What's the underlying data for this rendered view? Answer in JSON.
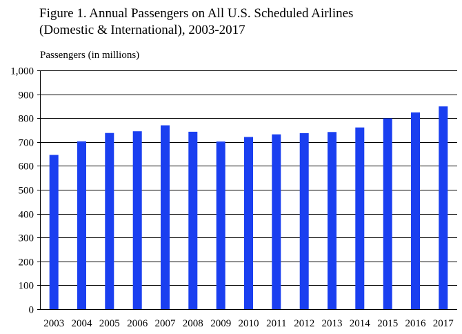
{
  "chart_data": {
    "type": "bar",
    "title_line1": "Figure 1. Annual Passengers on All U.S. Scheduled Airlines",
    "title_line2": "(Domestic & International), 2003-2017",
    "xlabel": "",
    "ylabel": "Passengers (in millions)",
    "categories": [
      "2003",
      "2004",
      "2005",
      "2006",
      "2007",
      "2008",
      "2009",
      "2010",
      "2011",
      "2012",
      "2013",
      "2014",
      "2015",
      "2016",
      "2017"
    ],
    "values": [
      646,
      703,
      738,
      745,
      770,
      743,
      702,
      721,
      732,
      737,
      742,
      761,
      799,
      824,
      849
    ],
    "ylim": [
      0,
      1000
    ],
    "yticks": [
      0,
      100,
      200,
      300,
      400,
      500,
      600,
      700,
      800,
      900,
      1000
    ],
    "ytick_labels": [
      "0",
      "100",
      "200",
      "300",
      "400",
      "500",
      "600",
      "700",
      "800",
      "900",
      "1,000"
    ],
    "grid": "horizontal",
    "legend": "none",
    "bar_color": "#1a3ff0",
    "grid_color": "#000000"
  }
}
